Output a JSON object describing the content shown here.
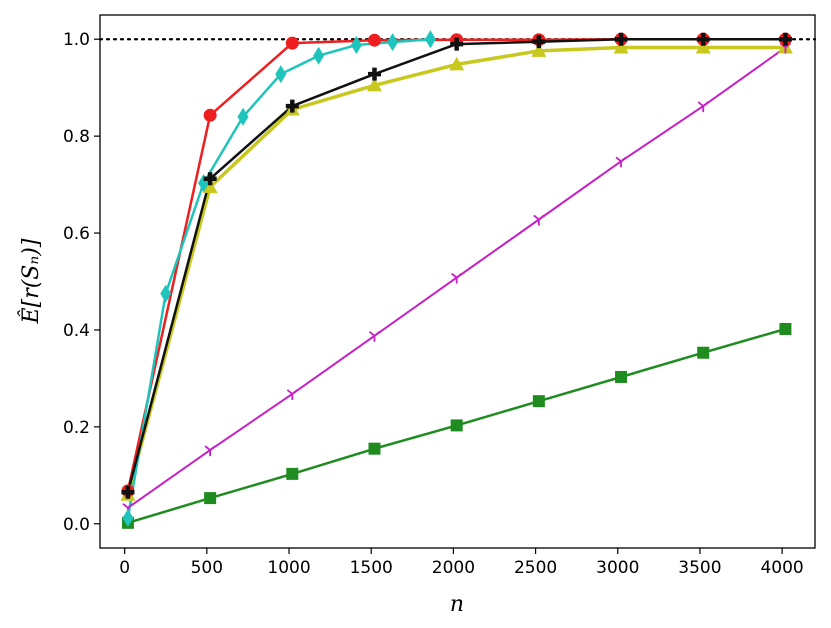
{
  "chart_data": {
    "type": "line",
    "title": "",
    "xlabel": "n",
    "ylabel": "Ê[r(Sₙ)]",
    "xlim": [
      -150,
      4200
    ],
    "ylim": [
      -0.05,
      1.05
    ],
    "xticks": [
      0,
      500,
      1000,
      1500,
      2000,
      2500,
      3000,
      3500,
      4000
    ],
    "xtick_labels": [
      "0",
      "500",
      "1000",
      "1500",
      "2000",
      "2500",
      "3000",
      "3500",
      "4000"
    ],
    "yticks": [
      0.0,
      0.2,
      0.4,
      0.6,
      0.8,
      1.0
    ],
    "ytick_labels": [
      "0.0",
      "0.2",
      "0.4",
      "0.6",
      "0.8",
      "1.0"
    ],
    "grid": false,
    "legend": "none",
    "reference_line": {
      "y": 1.0,
      "style": "dotted",
      "color": "#000000"
    },
    "series": [
      {
        "color": "#c8c81e",
        "marker": "triangle",
        "linewidth": 3.5,
        "points": [
          [
            20,
            0.06
          ],
          [
            520,
            0.695
          ],
          [
            1020,
            0.855
          ],
          [
            1520,
            0.905
          ],
          [
            2020,
            0.948
          ],
          [
            2520,
            0.976
          ],
          [
            3020,
            0.983
          ],
          [
            3520,
            0.983
          ],
          [
            4020,
            0.983
          ]
        ]
      },
      {
        "color": "#c71fc7",
        "marker": "tri-down",
        "linewidth": 2,
        "points": [
          [
            20,
            0.033
          ],
          [
            520,
            0.152
          ],
          [
            1020,
            0.268
          ],
          [
            1520,
            0.388
          ],
          [
            2020,
            0.508
          ],
          [
            2520,
            0.628
          ],
          [
            3020,
            0.748
          ],
          [
            3520,
            0.862
          ],
          [
            4020,
            0.983
          ]
        ]
      },
      {
        "color": "#1f8c1f",
        "marker": "square",
        "linewidth": 2.5,
        "points": [
          [
            20,
            0.002
          ],
          [
            520,
            0.053
          ],
          [
            1020,
            0.103
          ],
          [
            1520,
            0.155
          ],
          [
            2020,
            0.203
          ],
          [
            2520,
            0.253
          ],
          [
            3020,
            0.303
          ],
          [
            3520,
            0.353
          ],
          [
            4020,
            0.402
          ]
        ]
      },
      {
        "color": "#ef1f1f",
        "marker": "circle",
        "linewidth": 2.5,
        "points": [
          [
            20,
            0.068
          ],
          [
            520,
            0.843
          ],
          [
            1020,
            0.992
          ],
          [
            1520,
            0.998
          ],
          [
            2020,
            0.999
          ],
          [
            2520,
            0.999
          ],
          [
            3020,
            1.0
          ],
          [
            3520,
            1.0
          ],
          [
            4020,
            1.0
          ]
        ]
      },
      {
        "color": "#1fc4bc",
        "marker": "thin-diamond",
        "linewidth": 2.5,
        "points": [
          [
            20,
            0.012
          ],
          [
            250,
            0.475
          ],
          [
            480,
            0.703
          ],
          [
            720,
            0.84
          ],
          [
            950,
            0.928
          ],
          [
            1180,
            0.966
          ],
          [
            1410,
            0.988
          ],
          [
            1630,
            0.994
          ],
          [
            1860,
            1.0
          ]
        ]
      },
      {
        "color": "#111111",
        "marker": "plus",
        "linewidth": 2.5,
        "points": [
          [
            20,
            0.065
          ],
          [
            520,
            0.712
          ],
          [
            1020,
            0.862
          ],
          [
            1520,
            0.928
          ],
          [
            2020,
            0.99
          ],
          [
            2520,
            0.995
          ],
          [
            3020,
            1.0
          ],
          [
            3520,
            1.0
          ],
          [
            4020,
            1.0
          ]
        ]
      }
    ]
  }
}
